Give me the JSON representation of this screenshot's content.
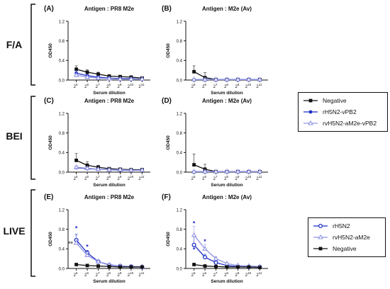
{
  "figure": {
    "row_labels": [
      "F/A",
      "BEI",
      "LIVE"
    ],
    "panels": [
      {
        "letter": "(A)",
        "title": "Antigen : PR8 M2e",
        "ylabel": "OD450",
        "xlabel": "Serum dilution",
        "legend": 0
      },
      {
        "letter": "(B)",
        "title": "Antigen : M2e (Av)",
        "ylabel": "OD450",
        "xlabel": "Serum dilution",
        "legend": 0
      },
      {
        "letter": "(C)",
        "title": "Antigen : PR8 M2e",
        "ylabel": "OD450",
        "xlabel": "Serum dilution",
        "legend": 0
      },
      {
        "letter": "(D)",
        "title": "Antigen : M2e (Av)",
        "ylabel": "OD450",
        "xlabel": "Serum dilution",
        "legend": 0
      },
      {
        "letter": "(E)",
        "title": "Antigen : PR8 M2e",
        "ylabel": "OD450",
        "xlabel": "Serum dilution",
        "legend": 1
      },
      {
        "letter": "(F)",
        "title": "Antigen : M2e (Av)",
        "ylabel": "OD450",
        "xlabel": "Serum dilution",
        "legend": 1
      }
    ],
    "legends": [
      {
        "items": [
          {
            "label": "Negative",
            "color": "#111111",
            "marker": "square"
          },
          {
            "label": "rH5N2-vPB2",
            "color": "#1f2fc4",
            "marker": "circle"
          },
          {
            "label": "rvH5N2-aM2e-vPB2",
            "color": "#8f93e3",
            "marker": "triangle"
          }
        ]
      },
      {
        "items": [
          {
            "label": "rH5N2",
            "color": "#1f2fc4",
            "marker": "circle-open"
          },
          {
            "label": "rvH5N2-aM2e",
            "color": "#8f93e3",
            "marker": "triangle"
          },
          {
            "label": "Negative",
            "color": "#111111",
            "marker": "square"
          }
        ]
      }
    ]
  },
  "chart_data": [
    {
      "type": "line",
      "title": "Antigen : PR8 M2e",
      "xlabel": "Serum dilution",
      "ylabel": "OD450",
      "ylim": [
        0,
        1.2
      ],
      "yticks": [
        "0.0",
        "0.4",
        "0.8",
        "1.2"
      ],
      "x": [
        "2^5",
        "2^6",
        "2^7",
        "2^8",
        "2^9",
        "2^10",
        "2^11"
      ],
      "grid": false,
      "series": [
        {
          "name": "Negative",
          "color": "#111111",
          "marker": "square",
          "values": [
            0.22,
            0.16,
            0.12,
            0.08,
            0.07,
            0.06,
            0.04
          ],
          "err": [
            0.07,
            0.05,
            0.04,
            0.03,
            0.02,
            0.02,
            0.01
          ]
        },
        {
          "name": "rH5N2-vPB2",
          "color": "#1f2fc4",
          "marker": "circle",
          "values": [
            0.14,
            0.09,
            0.06,
            0.04,
            0.03,
            0.03,
            0.02
          ],
          "err": [
            0.05,
            0.03,
            0.02,
            0.01,
            0.01,
            0.01,
            0.01
          ]
        },
        {
          "name": "rvH5N2-aM2e-vPB2",
          "color": "#8f93e3",
          "marker": "triangle",
          "values": [
            0.1,
            0.06,
            0.04,
            0.03,
            0.02,
            0.02,
            0.02
          ],
          "err": [
            0.04,
            0.02,
            0.02,
            0.01,
            0.01,
            0.01,
            0.01
          ]
        }
      ]
    },
    {
      "type": "line",
      "title": "Antigen : M2e (Av)",
      "xlabel": "Serum dilution",
      "ylabel": "OD450",
      "ylim": [
        0,
        1.2
      ],
      "yticks": [
        "0.0",
        "0.4",
        "0.8",
        "1.2"
      ],
      "x": [
        "2^5",
        "2^6",
        "2^7",
        "2^8",
        "2^9",
        "2^10",
        "2^11"
      ],
      "grid": false,
      "series": [
        {
          "name": "Negative",
          "color": "#111111",
          "marker": "square",
          "values": [
            0.17,
            0.05,
            0.01,
            0.01,
            0.01,
            0.01,
            0.01
          ],
          "err": [
            0.12,
            0.1,
            0.01,
            0.0,
            0.0,
            0.0,
            0.0
          ]
        },
        {
          "name": "rH5N2-vPB2",
          "color": "#1f2fc4",
          "marker": "circle",
          "values": [
            0.01,
            0.01,
            0.01,
            0.01,
            0.01,
            0.01,
            0.01
          ],
          "err": [
            0.0,
            0.0,
            0.0,
            0.0,
            0.0,
            0.0,
            0.0
          ]
        },
        {
          "name": "rvH5N2-aM2e-vPB2",
          "color": "#8f93e3",
          "marker": "triangle",
          "values": [
            0.01,
            0.01,
            0.01,
            0.01,
            0.01,
            0.01,
            0.01
          ],
          "err": [
            0.0,
            0.0,
            0.0,
            0.0,
            0.0,
            0.0,
            0.0
          ]
        }
      ]
    },
    {
      "type": "line",
      "title": "Antigen : PR8 M2e",
      "xlabel": "Serum dilution",
      "ylabel": "OD450",
      "ylim": [
        0,
        1.2
      ],
      "yticks": [
        "0.0",
        "0.4",
        "0.8",
        "1.2"
      ],
      "x": [
        "2^5",
        "2^6",
        "2^7",
        "2^8",
        "2^9",
        "2^10",
        "2^11"
      ],
      "grid": false,
      "series": [
        {
          "name": "Negative",
          "color": "#111111",
          "marker": "square",
          "values": [
            0.24,
            0.14,
            0.1,
            0.07,
            0.06,
            0.05,
            0.05
          ],
          "err": [
            0.14,
            0.07,
            0.04,
            0.02,
            0.02,
            0.01,
            0.01
          ]
        },
        {
          "name": "rH5N2-vPB2",
          "color": "#1f2fc4",
          "marker": "circle",
          "values": [
            0.09,
            0.07,
            0.06,
            0.05,
            0.04,
            0.04,
            0.04
          ],
          "err": [
            0.02,
            0.02,
            0.01,
            0.01,
            0.01,
            0.01,
            0.01
          ]
        },
        {
          "name": "rvH5N2-aM2e-vPB2",
          "color": "#8f93e3",
          "marker": "triangle",
          "values": [
            0.1,
            0.08,
            0.06,
            0.05,
            0.05,
            0.04,
            0.04
          ],
          "err": [
            0.03,
            0.02,
            0.01,
            0.01,
            0.01,
            0.01,
            0.01
          ]
        }
      ]
    },
    {
      "type": "line",
      "title": "Antigen : M2e (Av)",
      "xlabel": "Serum dilution",
      "ylabel": "OD450",
      "ylim": [
        0,
        1.2
      ],
      "yticks": [
        "0.0",
        "0.4",
        "0.8",
        "1.2"
      ],
      "x": [
        "2^5",
        "2^6",
        "2^7",
        "2^8",
        "2^9",
        "2^10",
        "2^11"
      ],
      "grid": false,
      "series": [
        {
          "name": "Negative",
          "color": "#111111",
          "marker": "square",
          "values": [
            0.15,
            0.06,
            0.01,
            0.01,
            0.01,
            0.01,
            0.01
          ],
          "err": [
            0.22,
            0.1,
            0.01,
            0.0,
            0.0,
            0.0,
            0.0
          ]
        },
        {
          "name": "rH5N2-vPB2",
          "color": "#1f2fc4",
          "marker": "circle",
          "values": [
            0.01,
            0.01,
            0.01,
            0.01,
            0.01,
            0.01,
            0.01
          ],
          "err": [
            0.0,
            0.0,
            0.0,
            0.0,
            0.0,
            0.0,
            0.0
          ]
        },
        {
          "name": "rvH5N2-aM2e-vPB2",
          "color": "#8f93e3",
          "marker": "triangle",
          "values": [
            0.01,
            0.01,
            0.01,
            0.01,
            0.01,
            0.01,
            0.01
          ],
          "err": [
            0.0,
            0.0,
            0.0,
            0.0,
            0.0,
            0.0,
            0.0
          ]
        }
      ]
    },
    {
      "type": "line",
      "title": "Antigen : PR8 M2e",
      "xlabel": "Serum dilution",
      "ylabel": "OD450",
      "ylim": [
        0,
        1.2
      ],
      "yticks": [
        "0.0",
        "0.4",
        "0.8",
        "1.2"
      ],
      "x": [
        "2^5",
        "2^6",
        "2^7",
        "2^8",
        "2^9",
        "2^10",
        "2^11"
      ],
      "grid": false,
      "annotations": [
        {
          "text": "*",
          "x_index": 0,
          "y": 0.82
        },
        {
          "text": "*",
          "x_index": 1,
          "y": 0.44
        },
        {
          "text": "ns",
          "x_index": 0,
          "y": 0.55
        }
      ],
      "series": [
        {
          "name": "rH5N2",
          "color": "#1f2fc4",
          "marker": "circle-open",
          "values": [
            0.58,
            0.32,
            0.14,
            0.07,
            0.05,
            0.04,
            0.03
          ],
          "err": [
            0.12,
            0.05,
            0.02,
            0.01,
            0.01,
            0.01,
            0.01
          ]
        },
        {
          "name": "rvH5N2-aM2e",
          "color": "#8f93e3",
          "marker": "triangle",
          "values": [
            0.52,
            0.27,
            0.14,
            0.08,
            0.05,
            0.04,
            0.04
          ],
          "err": [
            0.15,
            0.07,
            0.03,
            0.02,
            0.01,
            0.01,
            0.01
          ]
        },
        {
          "name": "Negative",
          "color": "#111111",
          "marker": "square",
          "values": [
            0.08,
            0.06,
            0.05,
            0.04,
            0.03,
            0.03,
            0.03
          ],
          "err": [
            0.01,
            0.01,
            0.01,
            0.01,
            0.0,
            0.0,
            0.0
          ]
        }
      ]
    },
    {
      "type": "line",
      "title": "Antigen : M2e (Av)",
      "xlabel": "Serum dilution",
      "ylabel": "OD450",
      "ylim": [
        0,
        1.2
      ],
      "yticks": [
        "0.0",
        "0.4",
        "0.8",
        "1.2"
      ],
      "x": [
        "2^5",
        "2^6",
        "2^7",
        "2^8",
        "2^9",
        "2^10",
        "2^11"
      ],
      "grid": false,
      "annotations": [
        {
          "text": "*",
          "x_index": 0,
          "y": 0.92
        },
        {
          "text": "*",
          "x_index": 1,
          "y": 0.55
        },
        {
          "text": "*",
          "x_index": 0,
          "y": 0.38
        }
      ],
      "series": [
        {
          "name": "rH5N2",
          "color": "#1f2fc4",
          "marker": "circle-open",
          "values": [
            0.48,
            0.23,
            0.12,
            0.06,
            0.04,
            0.03,
            0.03
          ],
          "err": [
            0.18,
            0.06,
            0.03,
            0.01,
            0.01,
            0.01,
            0.01
          ]
        },
        {
          "name": "rvH5N2-aM2e",
          "color": "#8f93e3",
          "marker": "triangle",
          "values": [
            0.68,
            0.4,
            0.2,
            0.1,
            0.06,
            0.05,
            0.04
          ],
          "err": [
            0.18,
            0.09,
            0.04,
            0.02,
            0.01,
            0.01,
            0.01
          ]
        },
        {
          "name": "Negative",
          "color": "#111111",
          "marker": "square",
          "values": [
            0.08,
            0.05,
            0.04,
            0.03,
            0.03,
            0.03,
            0.02
          ],
          "err": [
            0.02,
            0.01,
            0.01,
            0.01,
            0.0,
            0.0,
            0.0
          ]
        }
      ]
    }
  ]
}
